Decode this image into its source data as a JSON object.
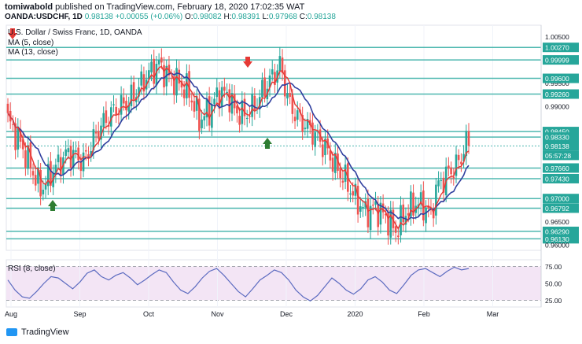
{
  "header": {
    "author": "tomiwabold",
    "published_text": "published on TradingView.com, February 18, 2020 17:02:35 WAT",
    "symbol": "OANDA:USDCHF, 1D",
    "last": "0.98138",
    "change": "+0.00055 (+0.06%)",
    "o_label": "O:",
    "o": "0.98082",
    "h_label": "H:",
    "h": "0.98391",
    "l_label": "L:",
    "l": "0.97968",
    "c_label": "C:",
    "c": "0.98138"
  },
  "legend": {
    "title": "U.S. Dollar / Swiss Franc, 1D, OANDA",
    "ma5": "MA (5, close)",
    "ma13": "MA (13, close)",
    "rsi": "RSI (8, close)"
  },
  "footer": {
    "brand": "TradingView"
  },
  "colors": {
    "up": "#26a69a",
    "down": "#ef5350",
    "level": "#4fb8b0",
    "ma5": "#e53935",
    "ma13": "#303f9f",
    "rsi": "#5c6bc0",
    "rsi_band": "#f3e5f5",
    "badge": "#26a69a"
  },
  "chart_data": [
    {
      "type": "candlestick",
      "title": "U.S. Dollar / Swiss Franc, 1D, OANDA",
      "ylim": [
        0.9588,
        1.0075
      ],
      "x_labels": [
        "Aug",
        "Sep",
        "Oct",
        "Nov",
        "Dec",
        "2020",
        "Feb",
        "Mar"
      ],
      "y_tick_labels": [
        "1.00500",
        "1.00270",
        "0.99999",
        "0.99500",
        "0.99600",
        "0.99260",
        "0.99000",
        "0.98450",
        "0.98330",
        "0.98138",
        "05:57:28",
        "0.97660",
        "0.97430",
        "0.97000",
        "0.96792",
        "0.96500",
        "0.96290",
        "0.96130",
        "0.96000"
      ],
      "levels": [
        1.0027,
        0.99999,
        0.996,
        0.9926,
        0.9845,
        0.9833,
        0.9766,
        0.9743,
        0.97,
        0.96792,
        0.9629,
        0.9613
      ],
      "last_price": 0.98138,
      "countdown": "05:57:28",
      "anchors": [
        [
          0,
          0.987
        ],
        [
          5,
          0.982
        ],
        [
          9,
          0.977
        ],
        [
          13,
          0.972
        ],
        [
          18,
          0.976
        ],
        [
          24,
          0.98
        ],
        [
          30,
          0.978
        ],
        [
          36,
          0.985
        ],
        [
          42,
          0.989
        ],
        [
          48,
          0.991
        ],
        [
          52,
          0.994
        ],
        [
          56,
          0.997
        ],
        [
          60,
          0.999
        ],
        [
          64,
          0.996
        ],
        [
          68,
          0.995
        ],
        [
          72,
          0.993
        ],
        [
          76,
          0.987
        ],
        [
          80,
          0.989
        ],
        [
          84,
          0.993
        ],
        [
          88,
          0.992
        ],
        [
          90,
          0.989
        ],
        [
          94,
          0.988
        ],
        [
          98,
          0.99
        ],
        [
          102,
          0.994
        ],
        [
          106,
          0.997
        ],
        [
          108,
          0.999
        ],
        [
          112,
          0.99
        ],
        [
          116,
          0.987
        ],
        [
          120,
          0.985
        ],
        [
          126,
          0.981
        ],
        [
          130,
          0.977
        ],
        [
          134,
          0.974
        ],
        [
          138,
          0.97
        ],
        [
          142,
          0.967
        ],
        [
          146,
          0.968
        ],
        [
          150,
          0.966
        ],
        [
          154,
          0.963
        ],
        [
          158,
          0.967
        ],
        [
          162,
          0.969
        ],
        [
          166,
          0.968
        ],
        [
          168,
          0.966
        ],
        [
          170,
          0.972
        ],
        [
          174,
          0.975
        ],
        [
          178,
          0.977
        ],
        [
          180,
          0.979
        ],
        [
          182,
          0.982
        ],
        [
          183,
          0.9814
        ]
      ],
      "ma5_label": "MA (5, close)",
      "ma13_label": "MA (13, close)"
    },
    {
      "type": "line",
      "title": "RSI (8, close)",
      "ylim": [
        15,
        85
      ],
      "y_tick_labels": [
        "75.00",
        "50.00",
        "25.00"
      ],
      "y_ticks": [
        75,
        50,
        25
      ],
      "values": [
        55,
        40,
        30,
        28,
        38,
        50,
        60,
        58,
        50,
        42,
        52,
        65,
        70,
        60,
        55,
        62,
        66,
        58,
        48,
        55,
        63,
        70,
        66,
        52,
        40,
        35,
        45,
        58,
        68,
        72,
        62,
        50,
        38,
        30,
        42,
        55,
        62,
        70,
        66,
        55,
        40,
        30,
        24,
        32,
        45,
        58,
        50,
        40,
        34,
        42,
        55,
        60,
        52,
        40,
        35,
        48,
        62,
        70,
        72,
        66,
        60,
        68,
        74,
        70,
        72
      ],
      "series_name": "RSI (8, close)"
    }
  ]
}
